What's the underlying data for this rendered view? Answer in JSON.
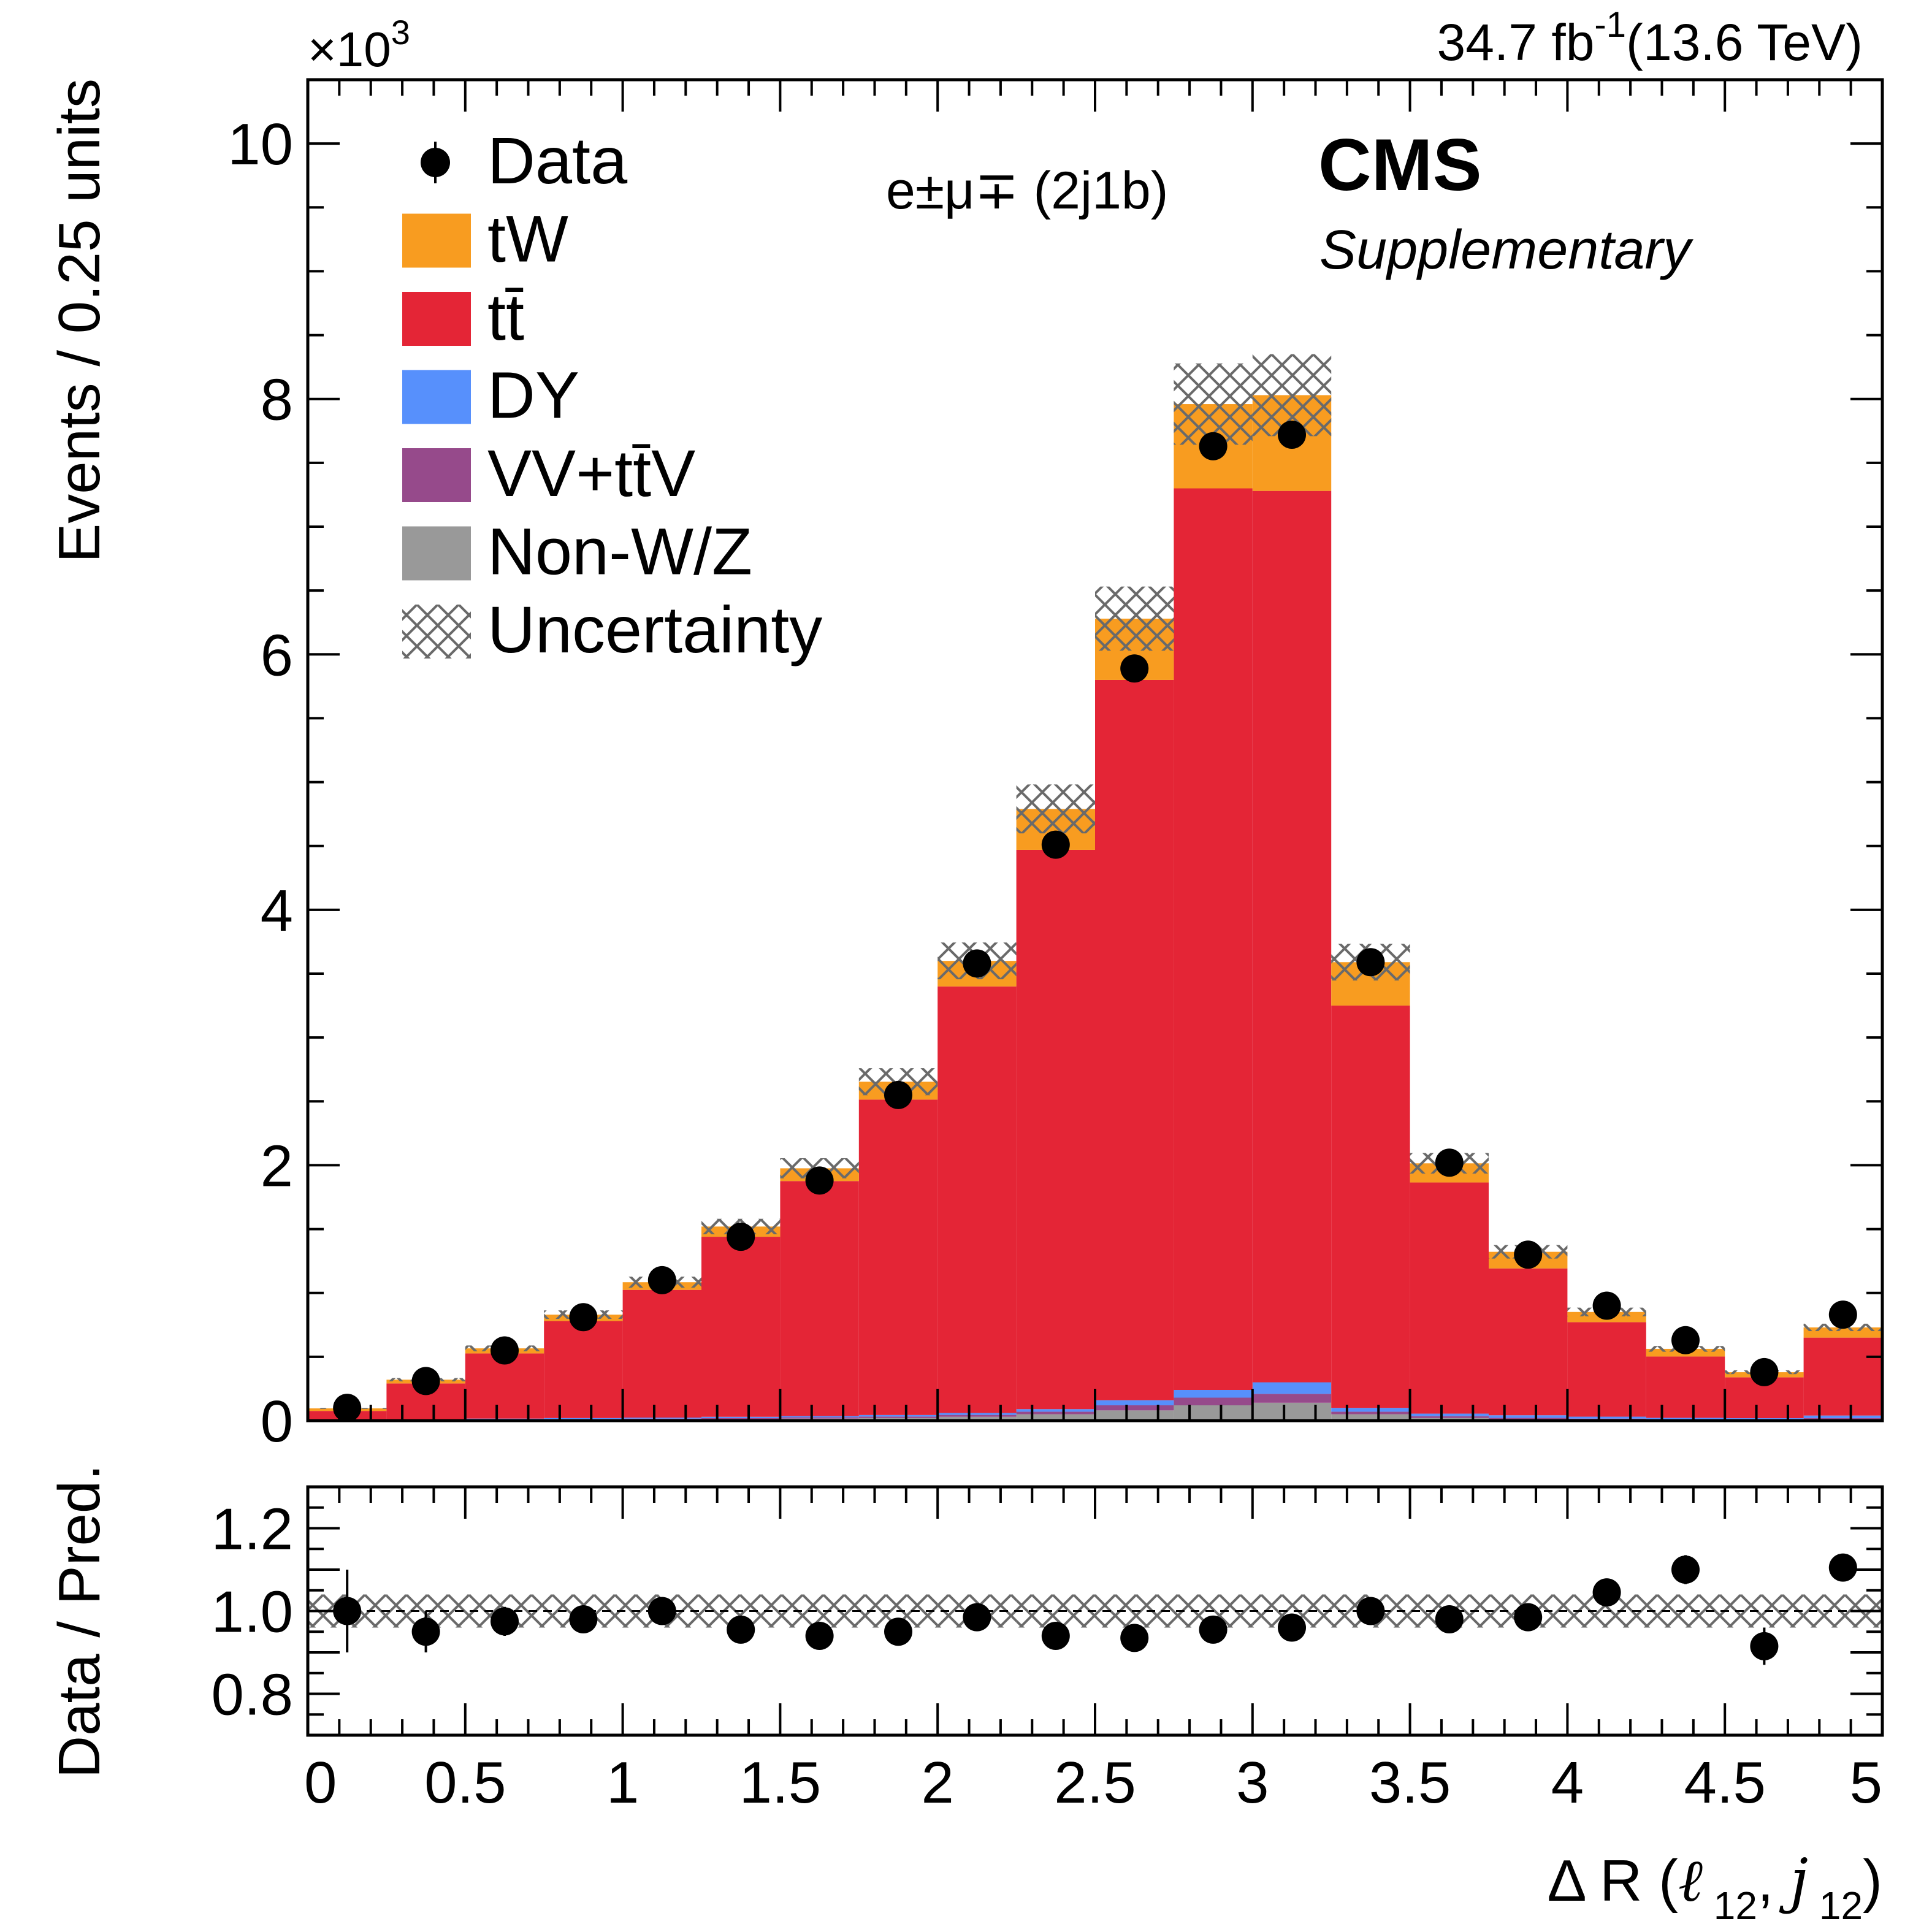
{
  "header": {
    "lumi": "34.7 fb",
    "lumi_sup": "-1",
    "energy": "(13.6 TeV)",
    "experiment": "CMS",
    "label": "Supplementary",
    "channel": "e±μ∓ (2j1b)",
    "multiplier": "×10",
    "multiplier_sup": "3"
  },
  "legend": {
    "items": [
      {
        "key": "data",
        "label": "Data"
      },
      {
        "key": "tw",
        "label": "tW"
      },
      {
        "key": "ttbar",
        "label": "tt̄"
      },
      {
        "key": "dy",
        "label": "DY"
      },
      {
        "key": "vv",
        "label": "VV+tt̄V"
      },
      {
        "key": "nonwz",
        "label": "Non-W/Z"
      },
      {
        "key": "unc",
        "label": "Uncertainty"
      }
    ]
  },
  "chart_data": [
    {
      "type": "bar",
      "stacked": true,
      "ylabel": "Events / 0.25 units",
      "y_multiplier": "×10^3",
      "bin_edges": [
        0,
        0.25,
        0.5,
        0.75,
        1.0,
        1.25,
        1.5,
        1.75,
        2.0,
        2.25,
        2.5,
        2.75,
        3.0,
        3.25,
        3.5,
        3.75,
        4.0,
        4.25,
        4.5,
        4.75,
        5.0
      ],
      "xlim": [
        0,
        5
      ],
      "ylim": [
        0,
        10.5
      ],
      "y_ticks": [
        0,
        2,
        4,
        6,
        8,
        10
      ],
      "series": [
        {
          "name": "Non-W/Z",
          "color": "#999999",
          "values": [
            0.002,
            0.004,
            0.006,
            0.008,
            0.01,
            0.012,
            0.016,
            0.02,
            0.03,
            0.05,
            0.08,
            0.12,
            0.14,
            0.05,
            0.02,
            0.012,
            0.008,
            0.006,
            0.004,
            0.01
          ]
        },
        {
          "name": "VV+tt̄V",
          "color": "#964a8b",
          "values": [
            0.002,
            0.003,
            0.004,
            0.005,
            0.006,
            0.008,
            0.01,
            0.012,
            0.015,
            0.02,
            0.04,
            0.06,
            0.07,
            0.02,
            0.015,
            0.01,
            0.008,
            0.006,
            0.005,
            0.01
          ]
        },
        {
          "name": "DY",
          "color": "#5790fc",
          "values": [
            0.002,
            0.004,
            0.006,
            0.007,
            0.008,
            0.01,
            0.01,
            0.012,
            0.015,
            0.02,
            0.04,
            0.06,
            0.09,
            0.03,
            0.02,
            0.02,
            0.015,
            0.01,
            0.01,
            0.02
          ]
        },
        {
          "name": "tt̄",
          "color": "#e42536",
          "values": [
            0.07,
            0.28,
            0.51,
            0.76,
            1.0,
            1.41,
            1.84,
            2.47,
            3.34,
            4.38,
            5.64,
            7.06,
            6.98,
            3.15,
            1.81,
            1.15,
            0.74,
            0.48,
            0.32,
            0.61
          ]
        },
        {
          "name": "tW",
          "color": "#f89c20",
          "values": [
            0.02,
            0.03,
            0.04,
            0.05,
            0.06,
            0.08,
            0.1,
            0.14,
            0.2,
            0.32,
            0.48,
            0.66,
            0.75,
            0.34,
            0.15,
            0.13,
            0.08,
            0.06,
            0.04,
            0.08
          ]
        }
      ],
      "data": {
        "name": "Data",
        "values": [
          0.1,
          0.31,
          0.55,
          0.81,
          1.1,
          1.44,
          1.88,
          2.55,
          3.58,
          4.51,
          5.89,
          7.63,
          7.72,
          3.59,
          2.02,
          1.3,
          0.9,
          0.63,
          0.38,
          0.83
        ]
      },
      "uncertainty": {
        "name": "Uncertainty",
        "relative": 0.04
      }
    },
    {
      "type": "scatter",
      "ylabel": "Data / Pred.",
      "xlabel": "Δ R (ℓ 12, j 12)",
      "xlim": [
        0,
        5
      ],
      "ylim": [
        0.7,
        1.3
      ],
      "x_ticks": [
        0,
        0.5,
        1,
        1.5,
        2,
        2.5,
        3,
        3.5,
        4,
        4.5,
        5
      ],
      "x_tick_labels": [
        "0",
        "0.5",
        "1",
        "1.5",
        "2",
        "2.5",
        "3",
        "3.5",
        "4",
        "4.5",
        "5"
      ],
      "y_ticks": [
        0.8,
        1.0,
        1.2
      ],
      "y_tick_labels": [
        "0.8",
        "1.0",
        "1.2"
      ],
      "x": [
        0.125,
        0.375,
        0.625,
        0.875,
        1.125,
        1.375,
        1.625,
        1.875,
        2.125,
        2.375,
        2.625,
        2.875,
        3.125,
        3.375,
        3.625,
        3.875,
        4.125,
        4.375,
        4.625,
        4.875
      ],
      "values": [
        1.0,
        0.95,
        0.975,
        0.98,
        1.0,
        0.955,
        0.94,
        0.95,
        0.985,
        0.94,
        0.935,
        0.955,
        0.96,
        1.0,
        0.98,
        0.985,
        1.045,
        1.1,
        0.915,
        1.105
      ],
      "errors": [
        0.1,
        0.05,
        0.035,
        0.03,
        0.025,
        0.02,
        0.02,
        0.018,
        0.015,
        0.013,
        0.012,
        0.011,
        0.011,
        0.016,
        0.02,
        0.025,
        0.03,
        0.035,
        0.045,
        0.032
      ],
      "uncertainty": {
        "name": "Uncertainty",
        "relative": 0.04
      }
    }
  ]
}
